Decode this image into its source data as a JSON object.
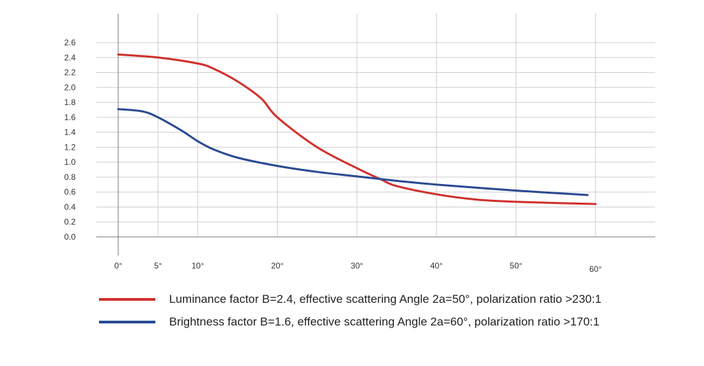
{
  "chart_data": {
    "type": "line",
    "title": "",
    "xlabel": "",
    "ylabel": "",
    "xlim": [
      0,
      68
    ],
    "ylim": [
      0,
      2.6
    ],
    "grid": true,
    "legend_placement": "bottom",
    "x_ticks": [
      0,
      5,
      10,
      20,
      30,
      40,
      50,
      60
    ],
    "x_tick_labels": [
      "0°",
      "5°",
      "10°",
      "20°",
      "30°",
      "40°",
      "50°",
      "60°"
    ],
    "y_ticks": [
      0.0,
      0.2,
      0.4,
      0.6,
      0.8,
      1.0,
      1.2,
      1.4,
      1.6,
      1.8,
      2.0,
      2.2,
      2.4,
      2.6
    ],
    "y_tick_labels": [
      "0.0",
      "0.2",
      "0.4",
      "0.6",
      "0.8",
      "1.0",
      "1.2",
      "1.4",
      "1.6",
      "1.8",
      "2.0",
      "2.2",
      "2.4",
      "2.6"
    ],
    "series": [
      {
        "name": "Luminance factor B=2.4, effective scattering Angle 2a=50°, polarization ratio >230:1",
        "color": "#d0312d",
        "x": [
          0,
          5,
          10,
          12,
          15,
          18,
          20,
          25,
          30,
          33,
          35,
          40,
          45,
          50,
          60
        ],
        "y": [
          2.44,
          2.4,
          2.32,
          2.25,
          2.08,
          1.85,
          1.6,
          1.2,
          0.92,
          0.77,
          0.68,
          0.57,
          0.5,
          0.47,
          0.44
        ]
      },
      {
        "name": "Brightness factor B=1.6, effective scattering Angle 2a=60°, polarization ratio >170:1",
        "color": "#2b4a93",
        "x": [
          0,
          3,
          5,
          8,
          10,
          12,
          15,
          20,
          25,
          30,
          35,
          40,
          50,
          59
        ],
        "y": [
          1.71,
          1.68,
          1.6,
          1.42,
          1.28,
          1.17,
          1.06,
          0.95,
          0.87,
          0.81,
          0.75,
          0.7,
          0.62,
          0.56
        ]
      }
    ]
  }
}
